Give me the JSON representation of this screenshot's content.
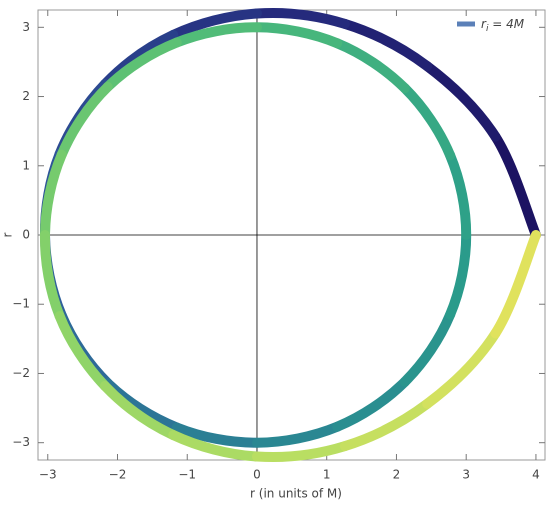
{
  "chart_data": {
    "type": "line",
    "x_label": "r (in units of M)",
    "y_label": "r",
    "series": [
      {
        "name": "r",
        "name_sub": "i",
        "name_rest": " = 4M",
        "color": "#5b80b8",
        "colors": [
          "#1a0f5e",
          "#262e80",
          "#2f5b9b",
          "#2a8493",
          "#2a9e8a",
          "#4bb97a",
          "#7cce6b",
          "#b2dd63",
          "#e6e35c"
        ],
        "x": [
          4.0,
          3.42,
          2.44,
          1.26,
          0.0,
          -1.2,
          -2.18,
          -2.83,
          -3.04,
          -2.8,
          -2.14,
          -1.15,
          0.0,
          1.15,
          2.12,
          2.77,
          3.0,
          2.77,
          2.12,
          1.15,
          0.0,
          -1.15,
          -2.14,
          -2.8,
          -3.04,
          -2.83,
          -2.18,
          -1.2,
          0.0,
          1.26,
          2.44,
          3.42,
          4.0
        ],
        "y": [
          0.0,
          1.42,
          2.44,
          3.05,
          3.2,
          2.89,
          2.18,
          1.17,
          0.0,
          -1.16,
          -2.14,
          -2.78,
          -3.0,
          -2.77,
          -2.12,
          -1.15,
          0.0,
          1.15,
          2.12,
          2.77,
          3.0,
          2.78,
          2.14,
          1.16,
          0.0,
          -1.17,
          -2.18,
          -2.89,
          -3.2,
          -3.05,
          -2.44,
          -1.42,
          0.0
        ]
      }
    ],
    "xlim": [
      -3.14,
      4.13
    ],
    "ylim": [
      -3.25,
      3.25
    ],
    "xticks": [
      {
        "value": -3,
        "label": "−3"
      },
      {
        "value": -2,
        "label": "−2"
      },
      {
        "value": -1,
        "label": "−1"
      },
      0,
      1,
      2,
      3,
      4
    ],
    "yticks": [
      {
        "value": -3,
        "label": "−3"
      },
      {
        "value": -2,
        "label": "−2"
      },
      {
        "value": -1,
        "label": "−1"
      },
      0,
      1,
      2,
      3
    ],
    "legend": "top-right"
  }
}
